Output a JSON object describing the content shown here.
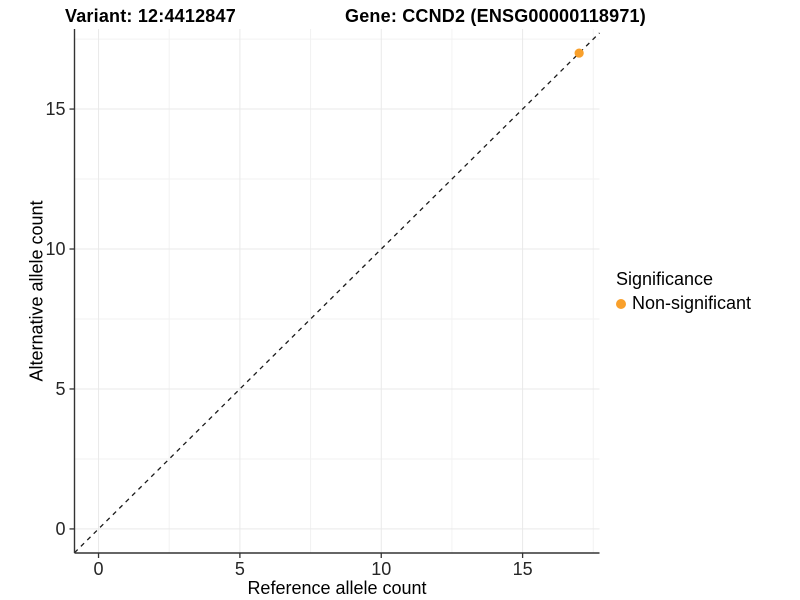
{
  "chart_data": {
    "type": "scatter",
    "title_left": "Variant: 12:4412847",
    "title_right": "Gene: CCND2 (ENSG00000118971)",
    "xlabel": "Reference allele count",
    "ylabel": "Alternative allele count",
    "xlim": [
      -0.85,
      17.72
    ],
    "ylim": [
      -0.86,
      17.86
    ],
    "x_ticks": {
      "values": [
        0,
        5,
        10,
        15
      ],
      "labels": [
        "0",
        "5",
        "10",
        "15"
      ]
    },
    "y_ticks": {
      "values": [
        0,
        5,
        10,
        15
      ],
      "labels": [
        "0",
        "5",
        "10",
        "15"
      ]
    },
    "minor_ticks": [
      2.5,
      7.5,
      12.5,
      17.5
    ],
    "grid": true,
    "identity_line": {
      "slope": 1,
      "intercept": 0,
      "style": "dashed",
      "color": "#1a1a1a"
    },
    "series": [
      {
        "name": "Non-significant",
        "color": "#F9A02B",
        "points": [
          {
            "x": 17,
            "y": 17
          }
        ]
      }
    ],
    "legend": {
      "title": "Significance",
      "position": "right",
      "items": [
        {
          "label": "Non-significant",
          "color": "#F9A02B"
        }
      ]
    },
    "colors": {
      "axis_line": "#333333",
      "grid_major": "#E9E9E9",
      "grid_minor": "#F2F2F2",
      "tick_text": "#262626"
    }
  }
}
